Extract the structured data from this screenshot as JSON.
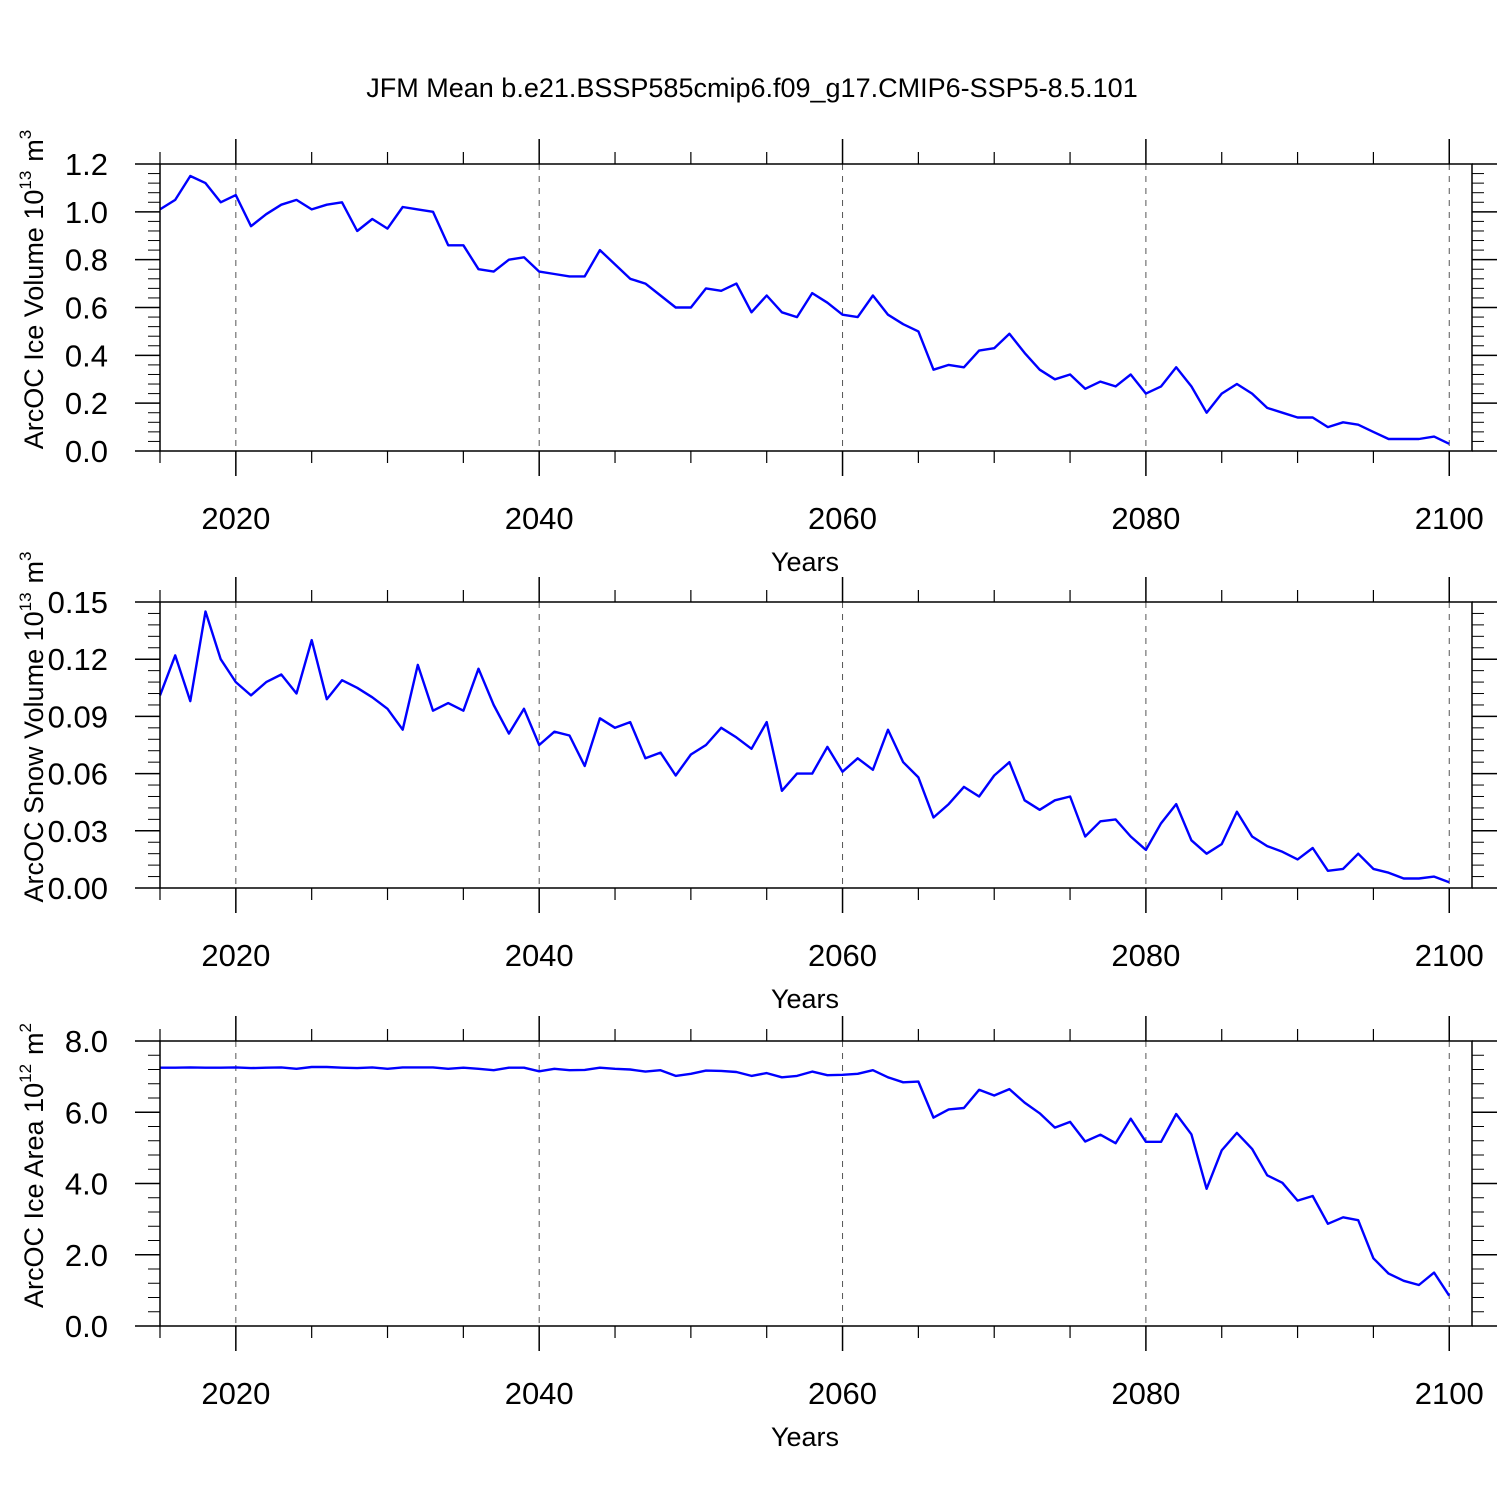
{
  "title": "JFM Mean b.e21.BSSP585cmip6.f09_g17.CMIP6-SSP5-8.5.101",
  "colors": {
    "series": "#0000ff",
    "axis": "#000000",
    "grid": "#555555",
    "background": "#ffffff"
  },
  "chart_data": [
    {
      "type": "line",
      "ylabel": "ArcOC Ice Volume 10",
      "ylabel_sup": "13",
      "ylabel_unit": "m",
      "ylabel_unit_sup": "3",
      "xlabel": "Years",
      "xlim": [
        2015,
        2102
      ],
      "ylim": [
        0.0,
        1.2
      ],
      "yticks": [
        "0.0",
        "0.2",
        "0.4",
        "0.6",
        "0.8",
        "1.0",
        "1.2"
      ],
      "xticks": [
        "2020",
        "2040",
        "2060",
        "2080",
        "2100"
      ],
      "grid": "x-dashed",
      "x_start": 2015,
      "values": [
        1.01,
        1.05,
        1.15,
        1.12,
        1.04,
        1.07,
        0.94,
        0.99,
        1.03,
        1.05,
        1.01,
        1.03,
        1.04,
        0.92,
        0.97,
        0.93,
        1.02,
        1.01,
        1.0,
        0.86,
        0.86,
        0.76,
        0.75,
        0.8,
        0.81,
        0.75,
        0.74,
        0.73,
        0.73,
        0.84,
        0.78,
        0.72,
        0.7,
        0.65,
        0.6,
        0.6,
        0.68,
        0.67,
        0.7,
        0.58,
        0.65,
        0.58,
        0.56,
        0.66,
        0.62,
        0.57,
        0.56,
        0.65,
        0.57,
        0.53,
        0.5,
        0.34,
        0.36,
        0.35,
        0.42,
        0.43,
        0.49,
        0.41,
        0.34,
        0.3,
        0.32,
        0.26,
        0.29,
        0.27,
        0.32,
        0.24,
        0.27,
        0.35,
        0.27,
        0.16,
        0.24,
        0.28,
        0.24,
        0.18,
        0.16,
        0.14,
        0.14,
        0.1,
        0.12,
        0.11,
        0.08,
        0.05,
        0.05,
        0.05,
        0.06,
        0.03
      ]
    },
    {
      "type": "line",
      "ylabel": "ArcOC Snow Volume 10",
      "ylabel_sup": "13",
      "ylabel_unit": "m",
      "ylabel_unit_sup": "3",
      "xlabel": "Years",
      "xlim": [
        2015,
        2102
      ],
      "ylim": [
        0.0,
        0.15
      ],
      "yticks": [
        "0.00",
        "0.03",
        "0.06",
        "0.09",
        "0.12",
        "0.15"
      ],
      "xticks": [
        "2020",
        "2040",
        "2060",
        "2080",
        "2100"
      ],
      "grid": "x-dashed",
      "x_start": 2015,
      "values": [
        0.101,
        0.122,
        0.098,
        0.145,
        0.12,
        0.108,
        0.101,
        0.108,
        0.112,
        0.102,
        0.13,
        0.099,
        0.109,
        0.105,
        0.1,
        0.094,
        0.083,
        0.117,
        0.093,
        0.097,
        0.093,
        0.115,
        0.096,
        0.081,
        0.094,
        0.075,
        0.082,
        0.08,
        0.064,
        0.089,
        0.084,
        0.087,
        0.068,
        0.071,
        0.059,
        0.07,
        0.075,
        0.084,
        0.079,
        0.073,
        0.087,
        0.051,
        0.06,
        0.06,
        0.074,
        0.061,
        0.068,
        0.062,
        0.083,
        0.066,
        0.058,
        0.037,
        0.044,
        0.053,
        0.048,
        0.059,
        0.066,
        0.046,
        0.041,
        0.046,
        0.048,
        0.027,
        0.035,
        0.036,
        0.027,
        0.02,
        0.034,
        0.044,
        0.025,
        0.018,
        0.023,
        0.04,
        0.027,
        0.022,
        0.019,
        0.015,
        0.021,
        0.009,
        0.01,
        0.018,
        0.01,
        0.008,
        0.005,
        0.005,
        0.006,
        0.003
      ]
    },
    {
      "type": "line",
      "ylabel": "ArcOC Ice Area 10",
      "ylabel_sup": "12",
      "ylabel_unit": "m",
      "ylabel_unit_sup": "2",
      "xlabel": "Years",
      "xlim": [
        2015,
        2102
      ],
      "ylim": [
        0.0,
        8.0
      ],
      "yticks": [
        "0.0",
        "2.0",
        "4.0",
        "6.0",
        "8.0"
      ],
      "xticks": [
        "2020",
        "2040",
        "2060",
        "2080",
        "2100"
      ],
      "grid": "x-dashed",
      "x_start": 2015,
      "values": [
        7.25,
        7.25,
        7.26,
        7.25,
        7.25,
        7.26,
        7.24,
        7.25,
        7.26,
        7.22,
        7.27,
        7.27,
        7.25,
        7.24,
        7.26,
        7.22,
        7.26,
        7.26,
        7.26,
        7.22,
        7.25,
        7.22,
        7.18,
        7.25,
        7.25,
        7.15,
        7.22,
        7.18,
        7.19,
        7.25,
        7.22,
        7.2,
        7.14,
        7.18,
        7.02,
        7.08,
        7.17,
        7.16,
        7.13,
        7.02,
        7.1,
        6.98,
        7.02,
        7.14,
        7.04,
        7.05,
        7.08,
        7.18,
        6.98,
        6.84,
        6.86,
        5.85,
        6.08,
        6.12,
        6.63,
        6.47,
        6.65,
        6.27,
        5.97,
        5.57,
        5.73,
        5.18,
        5.37,
        5.13,
        5.82,
        5.17,
        5.17,
        5.95,
        5.38,
        3.85,
        4.93,
        5.42,
        4.97,
        4.23,
        4.02,
        3.52,
        3.65,
        2.87,
        3.05,
        2.97,
        1.9,
        1.47,
        1.27,
        1.15,
        1.5,
        0.85
      ]
    }
  ]
}
